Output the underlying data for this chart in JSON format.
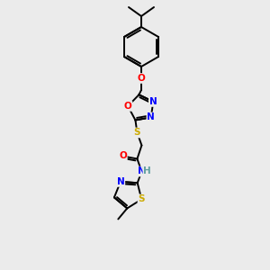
{
  "bg_color": "#ebebeb",
  "bond_color": "#000000",
  "atom_colors": {
    "O": "#ff0000",
    "N": "#0000ff",
    "S": "#ccaa00",
    "C": "#000000",
    "H": "#5f9ea0"
  },
  "figsize": [
    3.0,
    3.0
  ],
  "dpi": 100,
  "lw": 1.4,
  "fontsize": 7.5
}
